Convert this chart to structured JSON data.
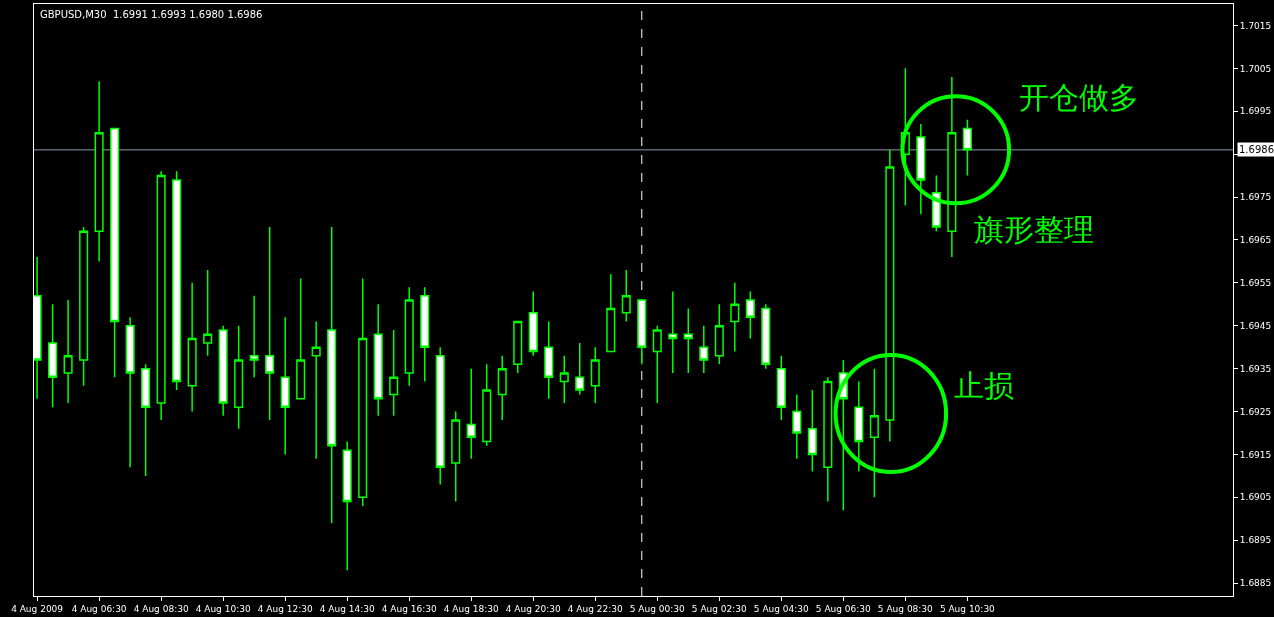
{
  "chart_data": {
    "type": "candlestick",
    "title": "GBPUSD,M30  1.6991 1.6993 1.6980 1.6986",
    "color": "#00ff00",
    "grid": false,
    "legend": false,
    "x": [
      "2009-08-04T04:30",
      "2009-08-04T05:00",
      "2009-08-04T05:30",
      "2009-08-04T06:00",
      "2009-08-04T06:30",
      "2009-08-04T07:00",
      "2009-08-04T07:30",
      "2009-08-04T08:00",
      "2009-08-04T08:30",
      "2009-08-04T09:00",
      "2009-08-04T09:30",
      "2009-08-04T10:00",
      "2009-08-04T10:30",
      "2009-08-04T11:00",
      "2009-08-04T11:30",
      "2009-08-04T12:00",
      "2009-08-04T12:30",
      "2009-08-04T13:00",
      "2009-08-04T13:30",
      "2009-08-04T14:00",
      "2009-08-04T14:30",
      "2009-08-04T15:00",
      "2009-08-04T15:30",
      "2009-08-04T16:00",
      "2009-08-04T16:30",
      "2009-08-04T17:00",
      "2009-08-04T17:30",
      "2009-08-04T18:00",
      "2009-08-04T18:30",
      "2009-08-04T19:00",
      "2009-08-04T19:30",
      "2009-08-04T20:00",
      "2009-08-04T20:30",
      "2009-08-04T21:00",
      "2009-08-04T21:30",
      "2009-08-04T22:00",
      "2009-08-04T22:30",
      "2009-08-04T23:00",
      "2009-08-04T23:30",
      "2009-08-05T00:00",
      "2009-08-05T00:30",
      "2009-08-05T01:00",
      "2009-08-05T01:30",
      "2009-08-05T02:00",
      "2009-08-05T02:30",
      "2009-08-05T03:00",
      "2009-08-05T03:30",
      "2009-08-05T04:00",
      "2009-08-05T04:30",
      "2009-08-05T05:00",
      "2009-08-05T05:30",
      "2009-08-05T06:00",
      "2009-08-05T06:30",
      "2009-08-05T07:00",
      "2009-08-05T07:30",
      "2009-08-05T08:00",
      "2009-08-05T08:30",
      "2009-08-05T09:00",
      "2009-08-05T09:30",
      "2009-08-05T10:00",
      "2009-08-05T10:30"
    ],
    "ohlc": [
      [
        1.6952,
        1.6961,
        1.6928,
        1.6937
      ],
      [
        1.6941,
        1.695,
        1.6926,
        1.6933
      ],
      [
        1.6934,
        1.6951,
        1.6927,
        1.6938
      ],
      [
        1.6937,
        1.6968,
        1.6931,
        1.6967
      ],
      [
        1.6967,
        1.7002,
        1.696,
        1.699
      ],
      [
        1.6991,
        1.6991,
        1.6933,
        1.6946
      ],
      [
        1.6945,
        1.6947,
        1.6912,
        1.6934
      ],
      [
        1.6935,
        1.6936,
        1.691,
        1.6926
      ],
      [
        1.6927,
        1.6981,
        1.6923,
        1.698
      ],
      [
        1.6979,
        1.6981,
        1.693,
        1.6932
      ],
      [
        1.6931,
        1.6955,
        1.6925,
        1.6942
      ],
      [
        1.6941,
        1.6958,
        1.6938,
        1.6943
      ],
      [
        1.6944,
        1.6945,
        1.6924,
        1.6927
      ],
      [
        1.6926,
        1.6945,
        1.6921,
        1.6937
      ],
      [
        1.6938,
        1.6952,
        1.6933,
        1.6937
      ],
      [
        1.6938,
        1.6968,
        1.6923,
        1.6934
      ],
      [
        1.6933,
        1.6947,
        1.6915,
        1.6926
      ],
      [
        1.6928,
        1.6956,
        1.6928,
        1.6937
      ],
      [
        1.6938,
        1.6946,
        1.6914,
        1.694
      ],
      [
        1.6944,
        1.6968,
        1.6899,
        1.6917
      ],
      [
        1.6916,
        1.6918,
        1.6888,
        1.6904
      ],
      [
        1.6905,
        1.6956,
        1.6903,
        1.6942
      ],
      [
        1.6943,
        1.695,
        1.6924,
        1.6928
      ],
      [
        1.6929,
        1.6944,
        1.6924,
        1.6933
      ],
      [
        1.6934,
        1.6954,
        1.6931,
        1.6951
      ],
      [
        1.6952,
        1.6954,
        1.6932,
        1.694
      ],
      [
        1.6938,
        1.694,
        1.6908,
        1.6912
      ],
      [
        1.6913,
        1.6925,
        1.6904,
        1.6923
      ],
      [
        1.6922,
        1.6935,
        1.6914,
        1.6919
      ],
      [
        1.6918,
        1.6936,
        1.6917,
        1.693
      ],
      [
        1.6929,
        1.6938,
        1.6923,
        1.6935
      ],
      [
        1.6936,
        1.6946,
        1.6934,
        1.6946
      ],
      [
        1.6948,
        1.6953,
        1.6938,
        1.6939
      ],
      [
        1.694,
        1.6946,
        1.6928,
        1.6933
      ],
      [
        1.6932,
        1.6938,
        1.6927,
        1.6934
      ],
      [
        1.6933,
        1.6941,
        1.6929,
        1.693
      ],
      [
        1.6931,
        1.694,
        1.6927,
        1.6937
      ],
      [
        1.6939,
        1.6957,
        1.6939,
        1.6949
      ],
      [
        1.6948,
        1.6958,
        1.6946,
        1.6952
      ],
      [
        1.6951,
        1.6951,
        1.6936,
        1.694
      ],
      [
        1.6939,
        1.6945,
        1.6927,
        1.6944
      ],
      [
        1.6943,
        1.6953,
        1.6934,
        1.6942
      ],
      [
        1.6943,
        1.6949,
        1.6934,
        1.6942
      ],
      [
        1.694,
        1.6945,
        1.6934,
        1.6937
      ],
      [
        1.6938,
        1.695,
        1.6936,
        1.6945
      ],
      [
        1.6946,
        1.6955,
        1.6939,
        1.695
      ],
      [
        1.6951,
        1.6953,
        1.6942,
        1.6947
      ],
      [
        1.6949,
        1.695,
        1.6935,
        1.6936
      ],
      [
        1.6935,
        1.6938,
        1.6923,
        1.6926
      ],
      [
        1.6925,
        1.6929,
        1.6914,
        1.692
      ],
      [
        1.6921,
        1.693,
        1.6911,
        1.6915
      ],
      [
        1.6912,
        1.6933,
        1.6904,
        1.6932
      ],
      [
        1.6934,
        1.6937,
        1.6902,
        1.6928
      ],
      [
        1.6926,
        1.6932,
        1.6911,
        1.6918
      ],
      [
        1.6919,
        1.6935,
        1.6905,
        1.6924
      ],
      [
        1.6923,
        1.6986,
        1.6918,
        1.6982
      ],
      [
        1.6985,
        1.7005,
        1.6973,
        1.699
      ],
      [
        1.6989,
        1.6992,
        1.6971,
        1.6979
      ],
      [
        1.6976,
        1.698,
        1.6967,
        1.6968
      ],
      [
        1.6967,
        1.7003,
        1.6961,
        1.699
      ],
      [
        1.6991,
        1.6993,
        1.698,
        1.6986
      ]
    ],
    "xlim": [
      "2009-08-04T04:24",
      "2009-08-05T19:04"
    ],
    "xticks": [
      {
        "value": "2009-08-04T04:30",
        "label": "4 Aug 2009"
      },
      {
        "value": "2009-08-04T06:30",
        "label": "4 Aug 06:30"
      },
      {
        "value": "2009-08-04T08:30",
        "label": "4 Aug 08:30"
      },
      {
        "value": "2009-08-04T10:30",
        "label": "4 Aug 10:30"
      },
      {
        "value": "2009-08-04T12:30",
        "label": "4 Aug 12:30"
      },
      {
        "value": "2009-08-04T14:30",
        "label": "4 Aug 14:30"
      },
      {
        "value": "2009-08-04T16:30",
        "label": "4 Aug 16:30"
      },
      {
        "value": "2009-08-04T18:30",
        "label": "4 Aug 18:30"
      },
      {
        "value": "2009-08-04T20:30",
        "label": "4 Aug 20:30"
      },
      {
        "value": "2009-08-04T22:30",
        "label": "4 Aug 22:30"
      },
      {
        "value": "2009-08-05T00:30",
        "label": "5 Aug 00:30"
      },
      {
        "value": "2009-08-05T02:30",
        "label": "5 Aug 02:30"
      },
      {
        "value": "2009-08-05T04:30",
        "label": "5 Aug 04:30"
      },
      {
        "value": "2009-08-05T06:30",
        "label": "5 Aug 06:30"
      },
      {
        "value": "2009-08-05T08:30",
        "label": "5 Aug 08:30"
      },
      {
        "value": "2009-08-05T10:30",
        "label": "5 Aug 10:30"
      }
    ],
    "ylim": [
      1.6882,
      1.702
    ],
    "yticks": [
      1.6885,
      1.6895,
      1.6905,
      1.6915,
      1.6925,
      1.6935,
      1.6945,
      1.6955,
      1.6965,
      1.6975,
      {
        "value": 1.6985,
        "label": null
      },
      1.6995,
      1.7005,
      1.7015
    ],
    "ref_lines": [
      {
        "axis": "y",
        "value": 1.6986,
        "label": "1.6986",
        "color": "#8a9bb0"
      },
      {
        "axis": "x",
        "value": "2009-08-05T00:00",
        "color": "#ffffff",
        "line_style": "dashed"
      }
    ],
    "annotations": [
      "开仓做多",
      "旗形整理",
      "止损"
    ]
  }
}
